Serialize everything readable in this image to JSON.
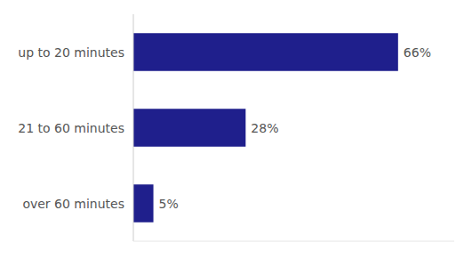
{
  "chart_data": {
    "type": "bar",
    "orientation": "horizontal",
    "categories": [
      "up to 20 minutes",
      "21 to 60 minutes",
      "over 60 minutes"
    ],
    "values": [
      66,
      28,
      5
    ],
    "value_labels": [
      "66%",
      "28%",
      "5%"
    ],
    "data_labels": true,
    "color": "#1f1f8c",
    "xlim": [
      0,
      80
    ],
    "tick_labels": "y",
    "grid": false
  }
}
